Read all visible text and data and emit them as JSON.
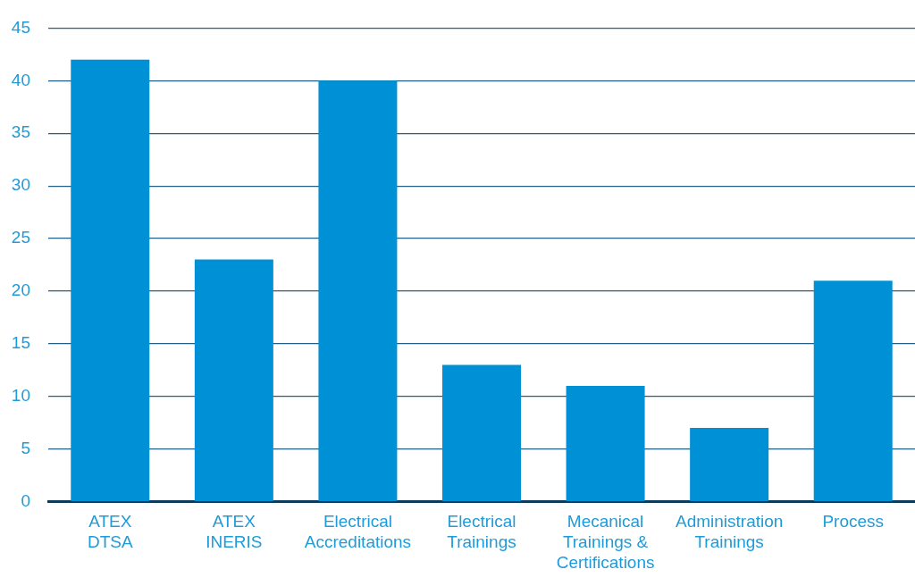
{
  "chart_data": {
    "type": "bar",
    "categories": [
      "ATEX\nDTSA",
      "ATEX\nINERIS",
      "Electrical\nAccreditations",
      "Electrical\nTrainings",
      "Mecanical\nTrainings &\nCertifications",
      "Administration\nTrainings",
      "Process"
    ],
    "values": [
      42,
      23,
      40,
      13,
      11,
      7,
      21
    ],
    "color": "#0090d6",
    "ylim": [
      0,
      45
    ],
    "yticks": [
      0,
      5,
      10,
      15,
      20,
      25,
      30,
      35,
      40,
      45
    ],
    "grid": "y"
  }
}
